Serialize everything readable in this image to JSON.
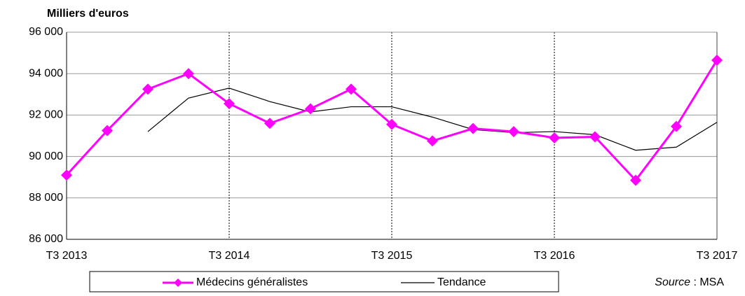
{
  "chart_data": {
    "type": "line",
    "y_axis_label": "Milliers d'euros",
    "categories": [
      "T3 2013",
      null,
      null,
      null,
      "T3 2014",
      null,
      null,
      null,
      "T3 2015",
      null,
      null,
      null,
      "T3 2016",
      null,
      null,
      null,
      "T3 2017"
    ],
    "series": [
      {
        "name": "Médecins généralistes",
        "color": "#ff00ff",
        "values": [
          89100,
          91250,
          93250,
          94000,
          92550,
          91600,
          92300,
          93250,
          91550,
          90750,
          91350,
          91200,
          90900,
          90950,
          88850,
          91450,
          94650
        ]
      },
      {
        "name": "Tendance",
        "color": "#000000",
        "values": [
          null,
          null,
          91200,
          92820,
          93300,
          92650,
          92150,
          92400,
          92400,
          91900,
          91300,
          91150,
          91200,
          91050,
          90300,
          90450,
          91650
        ]
      }
    ],
    "ylim": [
      86000,
      96000
    ],
    "yticks": [
      {
        "value": 86000,
        "label": "86 000"
      },
      {
        "value": 88000,
        "label": "88 000"
      },
      {
        "value": 90000,
        "label": "90 000"
      },
      {
        "value": 92000,
        "label": "92 000"
      },
      {
        "value": 94000,
        "label": "94 000"
      },
      {
        "value": 96000,
        "label": "96 000"
      }
    ],
    "grid": true,
    "source_label": "Source",
    "source_text": ": MSA"
  }
}
